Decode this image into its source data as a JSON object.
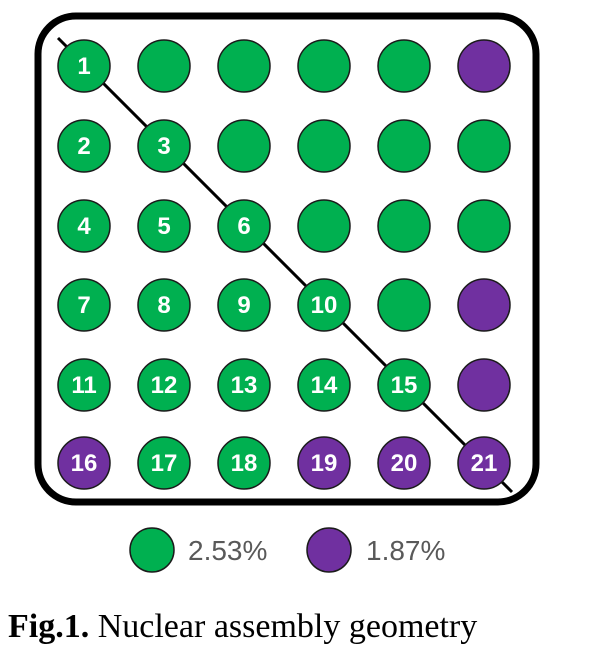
{
  "colors": {
    "green": "#00B050",
    "purple": "#7030A0",
    "pin_outline": "#1b1b1b",
    "frame": "#000000",
    "legend_text": "#595959"
  },
  "assembly": {
    "rows": 6,
    "cols": 6,
    "pins": [
      {
        "row": 0,
        "col": 0,
        "label": "1",
        "type": "green"
      },
      {
        "row": 0,
        "col": 1,
        "label": "",
        "type": "green"
      },
      {
        "row": 0,
        "col": 2,
        "label": "",
        "type": "green"
      },
      {
        "row": 0,
        "col": 3,
        "label": "",
        "type": "green"
      },
      {
        "row": 0,
        "col": 4,
        "label": "",
        "type": "green"
      },
      {
        "row": 0,
        "col": 5,
        "label": "",
        "type": "purple"
      },
      {
        "row": 1,
        "col": 0,
        "label": "2",
        "type": "green"
      },
      {
        "row": 1,
        "col": 1,
        "label": "3",
        "type": "green"
      },
      {
        "row": 1,
        "col": 2,
        "label": "",
        "type": "green"
      },
      {
        "row": 1,
        "col": 3,
        "label": "",
        "type": "green"
      },
      {
        "row": 1,
        "col": 4,
        "label": "",
        "type": "green"
      },
      {
        "row": 1,
        "col": 5,
        "label": "",
        "type": "green"
      },
      {
        "row": 2,
        "col": 0,
        "label": "4",
        "type": "green"
      },
      {
        "row": 2,
        "col": 1,
        "label": "5",
        "type": "green"
      },
      {
        "row": 2,
        "col": 2,
        "label": "6",
        "type": "green"
      },
      {
        "row": 2,
        "col": 3,
        "label": "",
        "type": "green"
      },
      {
        "row": 2,
        "col": 4,
        "label": "",
        "type": "green"
      },
      {
        "row": 2,
        "col": 5,
        "label": "",
        "type": "green"
      },
      {
        "row": 3,
        "col": 0,
        "label": "7",
        "type": "green"
      },
      {
        "row": 3,
        "col": 1,
        "label": "8",
        "type": "green"
      },
      {
        "row": 3,
        "col": 2,
        "label": "9",
        "type": "green"
      },
      {
        "row": 3,
        "col": 3,
        "label": "10",
        "type": "green"
      },
      {
        "row": 3,
        "col": 4,
        "label": "",
        "type": "green"
      },
      {
        "row": 3,
        "col": 5,
        "label": "",
        "type": "purple"
      },
      {
        "row": 4,
        "col": 0,
        "label": "11",
        "type": "green"
      },
      {
        "row": 4,
        "col": 1,
        "label": "12",
        "type": "green"
      },
      {
        "row": 4,
        "col": 2,
        "label": "13",
        "type": "green"
      },
      {
        "row": 4,
        "col": 3,
        "label": "14",
        "type": "green"
      },
      {
        "row": 4,
        "col": 4,
        "label": "15",
        "type": "green"
      },
      {
        "row": 4,
        "col": 5,
        "label": "",
        "type": "purple"
      },
      {
        "row": 5,
        "col": 0,
        "label": "16",
        "type": "purple"
      },
      {
        "row": 5,
        "col": 1,
        "label": "17",
        "type": "green"
      },
      {
        "row": 5,
        "col": 2,
        "label": "18",
        "type": "green"
      },
      {
        "row": 5,
        "col": 3,
        "label": "19",
        "type": "purple"
      },
      {
        "row": 5,
        "col": 4,
        "label": "20",
        "type": "purple"
      },
      {
        "row": 5,
        "col": 5,
        "label": "21",
        "type": "purple"
      }
    ]
  },
  "legend": [
    {
      "type": "green",
      "label": "2.53%"
    },
    {
      "type": "purple",
      "label": "1.87%"
    }
  ],
  "caption": {
    "prefix": "Fig.1.",
    "text": " Nuclear assembly geometry"
  }
}
